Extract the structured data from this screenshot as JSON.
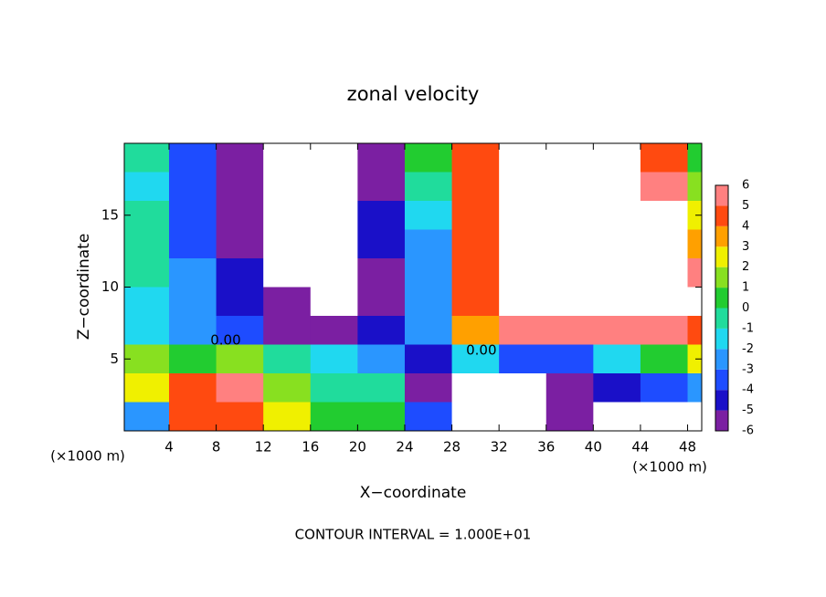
{
  "chart_data": {
    "type": "contour",
    "title": "zonal velocity",
    "x_label": "X−coordinate",
    "y_label": "Z−coordinate",
    "x_unit_labels": [
      "(×1000 m)",
      "(×1000 m)"
    ],
    "footer": "CONTOUR INTERVAL = 1.000E+01",
    "xlim": [
      0.2,
      49.2
    ],
    "xticks": [
      4,
      8,
      12,
      16,
      20,
      24,
      28,
      32,
      36,
      40,
      44,
      48
    ],
    "ylim": [
      0,
      20
    ],
    "yticks": [
      5,
      10,
      15
    ],
    "x": [
      2,
      6,
      10,
      14,
      18,
      22,
      26,
      30,
      34,
      38,
      42,
      46,
      50
    ],
    "y": [
      19,
      17,
      15,
      13,
      11,
      9,
      7,
      5,
      3,
      1
    ],
    "z": [
      [
        0,
        -3,
        -5,
        -8,
        -8,
        -5,
        1,
        5,
        8,
        8,
        8,
        5,
        1
      ],
      [
        -1,
        -3,
        -5,
        -8,
        -8,
        -5,
        0,
        5,
        8,
        8,
        8,
        6,
        2
      ],
      [
        0,
        -3,
        -5,
        -8,
        -8,
        -4,
        -1,
        5,
        8,
        10,
        8,
        7,
        3
      ],
      [
        0,
        -3,
        -5,
        -8,
        -10,
        -4,
        -2,
        5,
        8,
        10,
        9,
        8,
        4
      ],
      [
        0,
        -2,
        -4,
        -7,
        -10,
        -5,
        -2,
        5,
        8,
        10,
        9,
        8,
        6
      ],
      [
        -1,
        -2,
        -4,
        -6,
        -7,
        -5,
        -2,
        5,
        8,
        8,
        8,
        8,
        7
      ],
      [
        -1,
        -2,
        -3,
        -5,
        -5,
        -4,
        -2,
        4,
        6,
        6,
        6,
        6,
        5
      ],
      [
        2,
        1,
        2,
        0,
        -1,
        -2,
        -4,
        -1,
        -3,
        -3,
        -1,
        1,
        3
      ],
      [
        3,
        5,
        6,
        2,
        0,
        0,
        -5,
        -8,
        -8,
        -6,
        -4,
        -3,
        -2
      ],
      [
        -2,
        5,
        5,
        3,
        1,
        1,
        -3,
        -8,
        -8,
        -5,
        -8,
        -8,
        -7
      ]
    ],
    "levels": [
      -6,
      -5,
      -4,
      -3,
      -2,
      -1,
      0,
      1,
      2,
      3,
      4,
      5,
      6
    ],
    "colors": [
      "#7b1fa2",
      "#1a10c8",
      "#1e4cff",
      "#2a96ff",
      "#20d8f0",
      "#20dc9c",
      "#22cc30",
      "#88e020",
      "#f0f000",
      "#ffa000",
      "#ff4a10",
      "#ff8080"
    ],
    "out_of_range_color": "#ffffff",
    "contour_labels": [
      {
        "text": "0.00",
        "x": 8.8,
        "y": 6.3
      },
      {
        "text": "0.00",
        "x": 30.5,
        "y": 5.6
      }
    ]
  }
}
